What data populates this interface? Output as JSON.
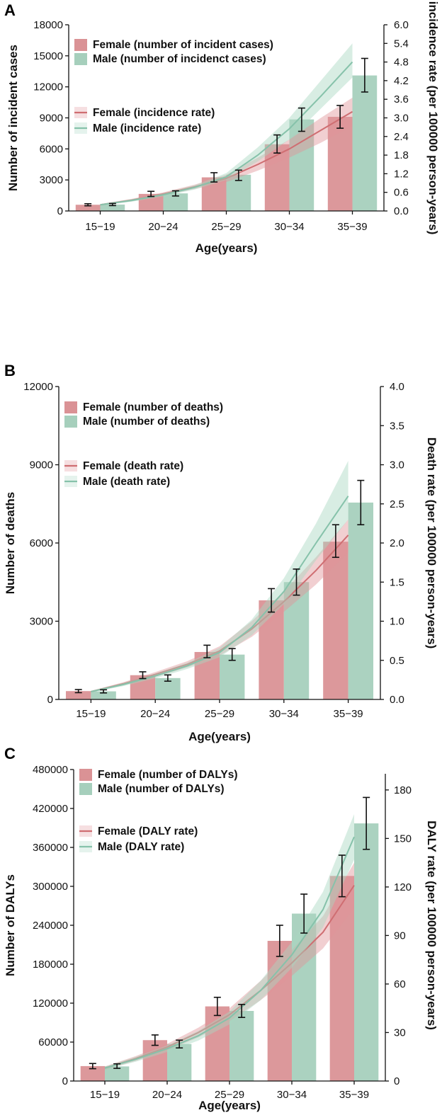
{
  "colors": {
    "female": "#d6868a",
    "male": "#9ccab5",
    "female_line": "#cf6e72",
    "male_line": "#86c2aa",
    "female_band": "#e0959a",
    "male_band": "#a9d6c2",
    "error_bar": "#111111"
  },
  "chart_data": [
    {
      "panel": "A",
      "type": "bar",
      "categories": [
        "15−19",
        "20−24",
        "25−29",
        "30−34",
        "35−39"
      ],
      "xlabel": "Age(years)",
      "ylabel": "Number of incident cases",
      "ylabel_right": "incidence rate (per 100000 person-years)",
      "ylim": [
        0,
        18000
      ],
      "yticks": [
        "0",
        "3000",
        "6000",
        "9000",
        "12000",
        "15000",
        "18000"
      ],
      "ylim_right": [
        0,
        6.0
      ],
      "yticks_right": [
        "0.0",
        "0.6",
        "1.2",
        "1.8",
        "2.4",
        "3.0",
        "3.6",
        "4.2",
        "4.8",
        "5.4",
        "6.0"
      ],
      "series": [
        {
          "name": "Female (number of incident cases)",
          "kind": "bar",
          "color_key": "female",
          "values": [
            600,
            1650,
            3250,
            6450,
            9100
          ],
          "err_low": [
            500,
            1400,
            2800,
            5600,
            8000
          ],
          "err_high": [
            700,
            1900,
            3700,
            7350,
            10200
          ]
        },
        {
          "name": "Male (number of incidenct cases)",
          "kind": "bar",
          "color_key": "male",
          "values": [
            620,
            1700,
            3500,
            8850,
            13100
          ],
          "err_low": [
            520,
            1450,
            2950,
            7700,
            11500
          ],
          "err_high": [
            720,
            1950,
            3950,
            9950,
            14750
          ]
        }
      ],
      "rate_series": [
        {
          "name": "Female (incidence rate)",
          "color_key": "female_line",
          "x": [
            0,
            0.5,
            1,
            1.5,
            2,
            2.5,
            3,
            3.5,
            4
          ],
          "values": [
            0.2,
            0.35,
            0.55,
            0.78,
            1.05,
            1.5,
            2.0,
            2.6,
            3.2
          ],
          "low": [
            0.18,
            0.31,
            0.5,
            0.71,
            0.93,
            1.3,
            1.72,
            2.2,
            2.75
          ],
          "high": [
            0.22,
            0.39,
            0.6,
            0.85,
            1.17,
            1.72,
            2.3,
            3.0,
            3.65
          ]
        },
        {
          "name": "Male (incidence rate)",
          "color_key": "male_line",
          "x": [
            0,
            0.5,
            1,
            1.5,
            2,
            2.5,
            3,
            3.5,
            4
          ],
          "values": [
            0.2,
            0.34,
            0.52,
            0.76,
            1.1,
            1.8,
            2.65,
            3.7,
            4.8
          ],
          "low": [
            0.18,
            0.3,
            0.47,
            0.69,
            1.0,
            1.6,
            2.3,
            3.3,
            4.3
          ],
          "high": [
            0.22,
            0.38,
            0.57,
            0.83,
            1.22,
            2.05,
            3.0,
            4.2,
            5.4
          ]
        }
      ]
    },
    {
      "panel": "B",
      "type": "bar",
      "categories": [
        "15−19",
        "20−24",
        "25−29",
        "30−34",
        "35−39"
      ],
      "xlabel": "Age(years)",
      "ylabel": "Number of deaths",
      "ylabel_right": "Death rate (per 100000 person-years)",
      "ylim": [
        0,
        12000
      ],
      "yticks": [
        "0",
        "3000",
        "6000",
        "9000",
        "12000"
      ],
      "ylim_right": [
        0,
        4.0
      ],
      "yticks_right": [
        "0.0",
        "0.5",
        "1.0",
        "1.5",
        "2.0",
        "2.5",
        "3.0",
        "3.5",
        "4.0"
      ],
      "series": [
        {
          "name": "Female (number of deaths)",
          "kind": "bar",
          "color_key": "female",
          "values": [
            320,
            930,
            1820,
            3800,
            6050
          ],
          "err_low": [
            260,
            800,
            1600,
            3350,
            5450
          ],
          "err_high": [
            380,
            1060,
            2080,
            4250,
            6700
          ]
        },
        {
          "name": "Male (number of deaths)",
          "kind": "bar",
          "color_key": "male",
          "values": [
            310,
            820,
            1720,
            4500,
            7550
          ],
          "err_low": [
            250,
            700,
            1500,
            4000,
            6700
          ],
          "err_high": [
            370,
            940,
            1950,
            5000,
            8400
          ]
        }
      ],
      "rate_series": [
        {
          "name": "Female (death rate)",
          "color_key": "female_line",
          "x": [
            0,
            0.5,
            1,
            1.5,
            2,
            2.5,
            3,
            3.5,
            4
          ],
          "values": [
            0.1,
            0.2,
            0.32,
            0.45,
            0.62,
            0.9,
            1.25,
            1.65,
            2.1
          ],
          "low": [
            0.09,
            0.18,
            0.29,
            0.41,
            0.56,
            0.8,
            1.12,
            1.47,
            1.88
          ],
          "high": [
            0.11,
            0.22,
            0.35,
            0.49,
            0.68,
            1.0,
            1.38,
            1.82,
            2.3
          ]
        },
        {
          "name": "Male (death rate)",
          "color_key": "male_line",
          "x": [
            0,
            0.5,
            1,
            1.5,
            2,
            2.5,
            3,
            3.5,
            4
          ],
          "values": [
            0.1,
            0.19,
            0.3,
            0.43,
            0.6,
            0.92,
            1.38,
            2.0,
            2.6
          ],
          "low": [
            0.09,
            0.17,
            0.27,
            0.39,
            0.54,
            0.82,
            1.22,
            1.78,
            2.3
          ],
          "high": [
            0.11,
            0.21,
            0.33,
            0.47,
            0.66,
            1.02,
            1.55,
            2.25,
            3.05
          ]
        }
      ]
    },
    {
      "panel": "C",
      "type": "bar",
      "categories": [
        "15−19",
        "20−24",
        "25−29",
        "30−34",
        "35−39"
      ],
      "xlabel": "Age(years)",
      "ylabel": "Number of DALYs",
      "ylabel_right": "DALY rate (per 100000 person-years)",
      "ylim": [
        0,
        480000
      ],
      "yticks": [
        "0",
        "60000",
        "120000",
        "180000",
        "240000",
        "300000",
        "360000",
        "420000",
        "480000"
      ],
      "ylim_right": [
        0,
        190
      ],
      "yticks_right": [
        "0",
        "30",
        "60",
        "90",
        "120",
        "150",
        "180"
      ],
      "series": [
        {
          "name": "Female (number of DALYs)",
          "kind": "bar",
          "color_key": "female",
          "values": [
            23000,
            63000,
            115000,
            216000,
            316000
          ],
          "err_low": [
            19000,
            55000,
            101000,
            192000,
            284000
          ],
          "err_high": [
            27000,
            71000,
            129000,
            240000,
            348000
          ]
        },
        {
          "name": "Male (number of DALYs)",
          "kind": "bar",
          "color_key": "male",
          "values": [
            22500,
            57000,
            108000,
            258000,
            397000
          ],
          "err_low": [
            19500,
            51000,
            98000,
            228000,
            357000
          ],
          "err_high": [
            26500,
            63000,
            118000,
            288000,
            437000
          ]
        }
      ],
      "rate_series": [
        {
          "name": "Female (DALY rate)",
          "color_key": "female_line",
          "x": [
            0,
            0.5,
            1,
            1.5,
            2,
            2.5,
            3,
            3.5,
            4
          ],
          "values": [
            8,
            14,
            21,
            30,
            41,
            56,
            73,
            92,
            121
          ],
          "low": [
            7,
            12.5,
            19,
            27,
            37,
            50,
            65,
            82,
            107
          ],
          "high": [
            9,
            15.5,
            23,
            33,
            45,
            62,
            81,
            102,
            135
          ]
        },
        {
          "name": "Male (DALY rate)",
          "color_key": "male_line",
          "x": [
            0,
            0.5,
            1,
            1.5,
            2,
            2.5,
            3,
            3.5,
            4
          ],
          "values": [
            8,
            13.5,
            20,
            28,
            39,
            56,
            78,
            106,
            151
          ],
          "low": [
            7,
            12,
            18,
            25,
            35,
            50,
            70,
            95,
            137
          ],
          "high": [
            9,
            15,
            22,
            31,
            43,
            62,
            86,
            117,
            165
          ]
        }
      ]
    }
  ]
}
